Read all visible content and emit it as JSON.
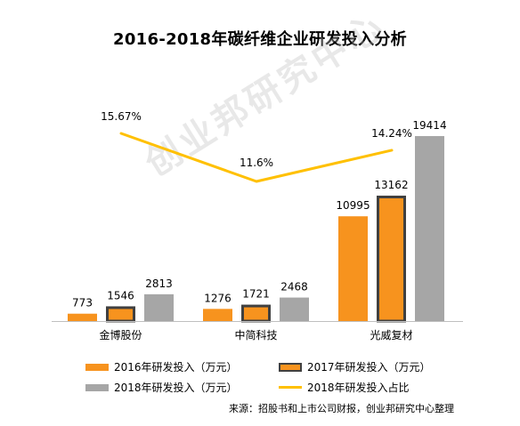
{
  "chart_data": {
    "type": "bar",
    "title": "2016-2018年碳纤维企业研发投入分析",
    "categories": [
      "金博股份",
      "中简科技",
      "光威复材"
    ],
    "series": [
      {
        "name": "2016年研发投入（万元）",
        "values": [
          773,
          1276,
          10995
        ],
        "color": "#F7931E",
        "outline": ""
      },
      {
        "name": "2017年研发投入（万元）",
        "values": [
          1546,
          1721,
          13162
        ],
        "color": "#F7931E",
        "outline": "#404040"
      },
      {
        "name": "2018年研发投入（万元）",
        "values": [
          2813,
          2468,
          19414
        ],
        "color": "#A6A6A6",
        "outline": ""
      }
    ],
    "line_series": {
      "name": "2018年研发投入占比",
      "values": [
        15.67,
        11.6,
        14.24
      ],
      "labels": [
        "15.67%",
        "11.6%",
        "14.24%"
      ],
      "color": "#FFC000"
    },
    "ylim": [
      0,
      20000
    ],
    "grid": false,
    "legend_position": "bottom",
    "source": "来源：招股书和上市公司财报，创业邦研究中心整理",
    "watermark": "创业邦研究中心"
  }
}
